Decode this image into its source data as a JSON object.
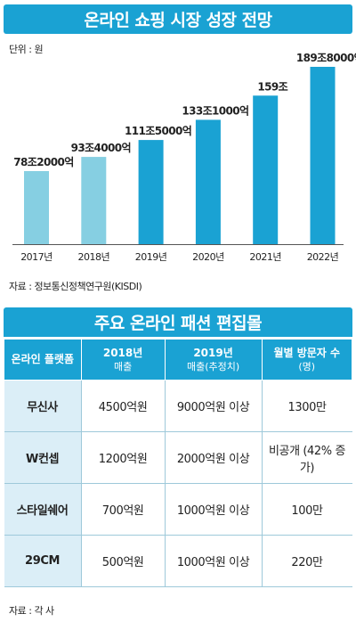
{
  "chart_title": "온라인 쇼핑 시장 성장 전망",
  "unit_label": "단위 : 원",
  "chart_source": "자료 : 정보통신정책연구원(KISDI)",
  "colors": {
    "banner": "#1aa2d3",
    "bar_light": "#86cfe2",
    "bar_dark": "#1aa2d3",
    "name_cell": "#dbeef7"
  },
  "chart_data": {
    "type": "bar",
    "title": "온라인 쇼핑 시장 성장 전망",
    "categories": [
      "2017년",
      "2018년",
      "2019년",
      "2020년",
      "2021년",
      "2022년"
    ],
    "values": [
      782000,
      934000,
      1115000,
      1331000,
      1590000,
      1898000
    ],
    "value_unit": "억원",
    "data_labels": [
      "78조2000억",
      "93조4000억",
      "111조5000억",
      "133조1000억",
      "159조",
      "189조8000억"
    ],
    "projected_from_index": 2,
    "ylim": [
      0,
      1898000
    ],
    "grid": false,
    "legend": "none"
  },
  "table_title": "주요 온라인 패션 편집몰",
  "table": {
    "headers": [
      {
        "main": "온라인 플랫폼",
        "sub": ""
      },
      {
        "main": "2018년",
        "sub": "매출"
      },
      {
        "main": "2019년",
        "sub": "매출(추정치)"
      },
      {
        "main": "월별 방문자 수",
        "sub": "(명)"
      }
    ],
    "rows": [
      [
        "무신사",
        "4500억원",
        "9000억원 이상",
        "1300만"
      ],
      [
        "W컨셉",
        "1200억원",
        "2000억원 이상",
        "비공개 (42% 증가)"
      ],
      [
        "스타일쉐어",
        "700억원",
        "1000억원 이상",
        "100만"
      ],
      [
        "29CM",
        "500억원",
        "1000억원 이상",
        "220만"
      ]
    ]
  },
  "table_source": "자료 : 각 사"
}
